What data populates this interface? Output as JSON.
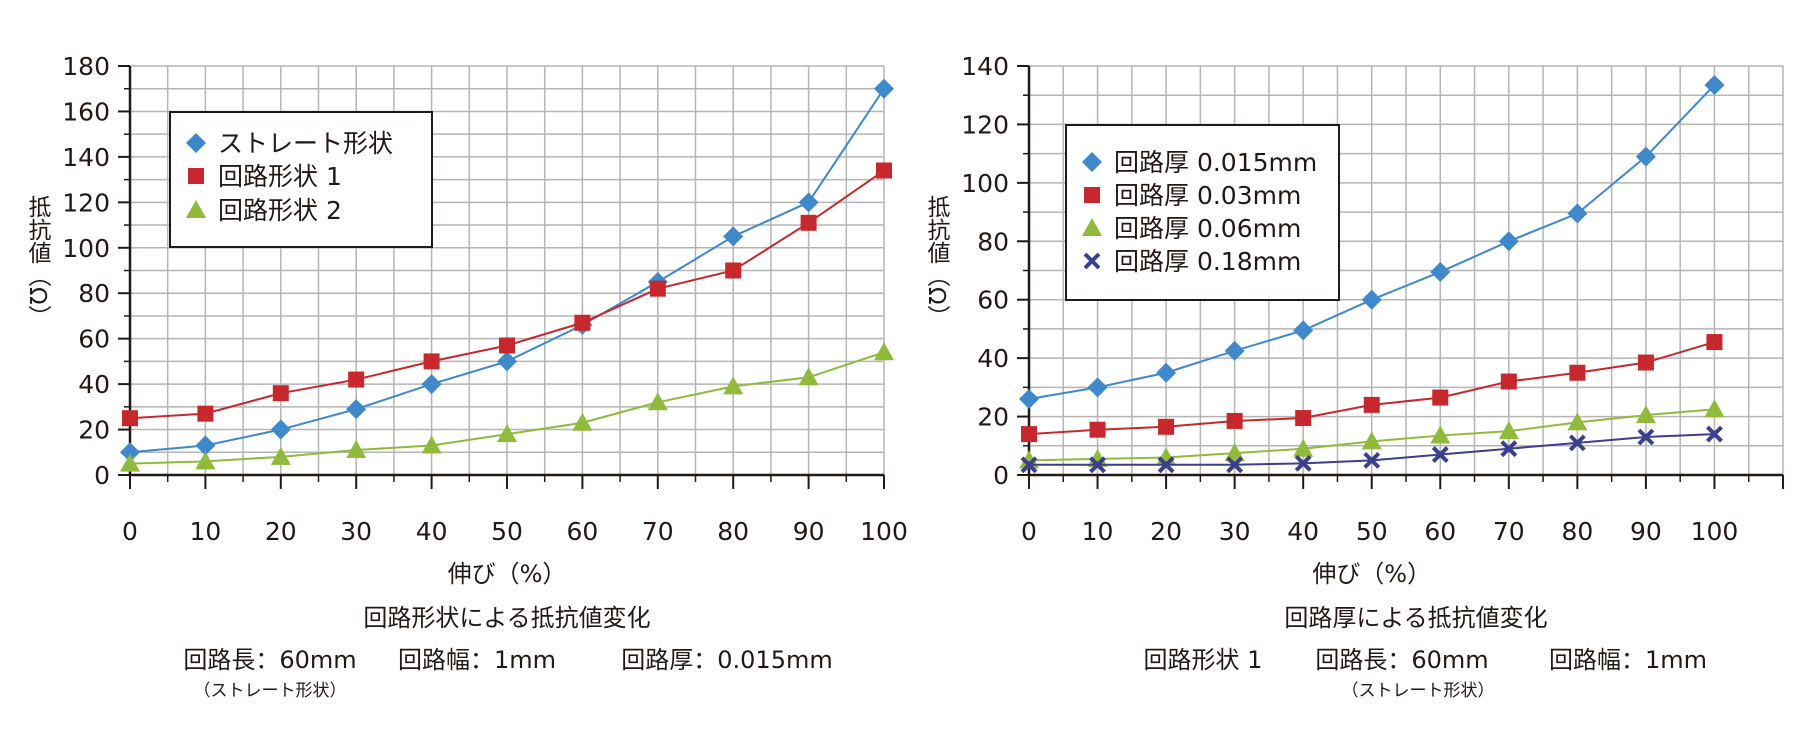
{
  "chart_data": [
    {
      "type": "line",
      "xlabel": "伸び（%）",
      "ylabel": "抵抗値（Ω）",
      "x": [
        0,
        10,
        20,
        30,
        40,
        50,
        60,
        70,
        80,
        90,
        100
      ],
      "xlim": [
        0,
        100
      ],
      "ylim": [
        0,
        180
      ],
      "x_ticks": [
        "0",
        "10",
        "20",
        "30",
        "40",
        "50",
        "60",
        "70",
        "80",
        "90",
        "100"
      ],
      "y_ticks": [
        "0",
        "20",
        "40",
        "60",
        "80",
        "100",
        "120",
        "140",
        "160",
        "180"
      ],
      "grid": true,
      "legend_position": "top-left",
      "series": [
        {
          "name": "ストレート形状",
          "color": "#3f88c9",
          "marker": "diamond",
          "values": [
            10,
            13,
            20,
            29,
            40,
            50,
            66,
            85,
            105,
            120,
            170
          ]
        },
        {
          "name": "回路形状 1",
          "color": "#c6282d",
          "marker": "square",
          "values": [
            25,
            27,
            36,
            42,
            50,
            57,
            67,
            82,
            90,
            111,
            134
          ]
        },
        {
          "name": "回路形状 2",
          "color": "#8fba3c",
          "marker": "triangle",
          "values": [
            5,
            6,
            8,
            11,
            13,
            18,
            23,
            32,
            39,
            43,
            54
          ]
        }
      ],
      "caption": {
        "title": "回路形状による抵抗値変化",
        "line1": [
          "回路長：60mm",
          "回路幅：1mm",
          "回路厚：0.015mm"
        ],
        "note": "（ストレート形状）"
      }
    },
    {
      "type": "line",
      "xlabel": "伸び（%）",
      "ylabel": "抵抗値（Ω）",
      "x": [
        0,
        10,
        20,
        30,
        40,
        50,
        60,
        70,
        80,
        90,
        100
      ],
      "xlim": [
        0,
        110
      ],
      "ylim": [
        0,
        140
      ],
      "x_ticks": [
        "0",
        "10",
        "20",
        "30",
        "40",
        "50",
        "60",
        "70",
        "80",
        "90",
        "100"
      ],
      "y_ticks": [
        "0",
        "20",
        "40",
        "60",
        "80",
        "100",
        "120",
        "140"
      ],
      "grid": true,
      "legend_position": "top-left",
      "series": [
        {
          "name": "回路厚 0.015mm",
          "color": "#3f88c9",
          "marker": "diamond",
          "values": [
            26,
            30,
            35,
            42.5,
            49.5,
            60,
            69.5,
            80,
            89.5,
            109,
            133.5
          ]
        },
        {
          "name": "回路厚 0.03mm",
          "color": "#c6282d",
          "marker": "square",
          "values": [
            14,
            15.5,
            16.5,
            18.5,
            19.5,
            24,
            26.5,
            32,
            35,
            38.5,
            45.5
          ]
        },
        {
          "name": "回路厚 0.06mm",
          "color": "#8fba3c",
          "marker": "triangle",
          "values": [
            5,
            5.5,
            6,
            7.5,
            9,
            11.5,
            13.5,
            15,
            18,
            20.5,
            22.5
          ]
        },
        {
          "name": "回路厚 0.18mm",
          "color": "#3b3f8c",
          "marker": "x",
          "values": [
            3.5,
            3.5,
            3.5,
            3.5,
            4,
            5,
            7,
            9,
            11,
            13,
            14
          ]
        }
      ],
      "caption": {
        "title": "回路厚による抵抗値変化",
        "line1": [
          "回路形状 1",
          "回路長：60mm",
          "回路幅：1mm"
        ],
        "note": "（ストレート形状）"
      }
    }
  ]
}
